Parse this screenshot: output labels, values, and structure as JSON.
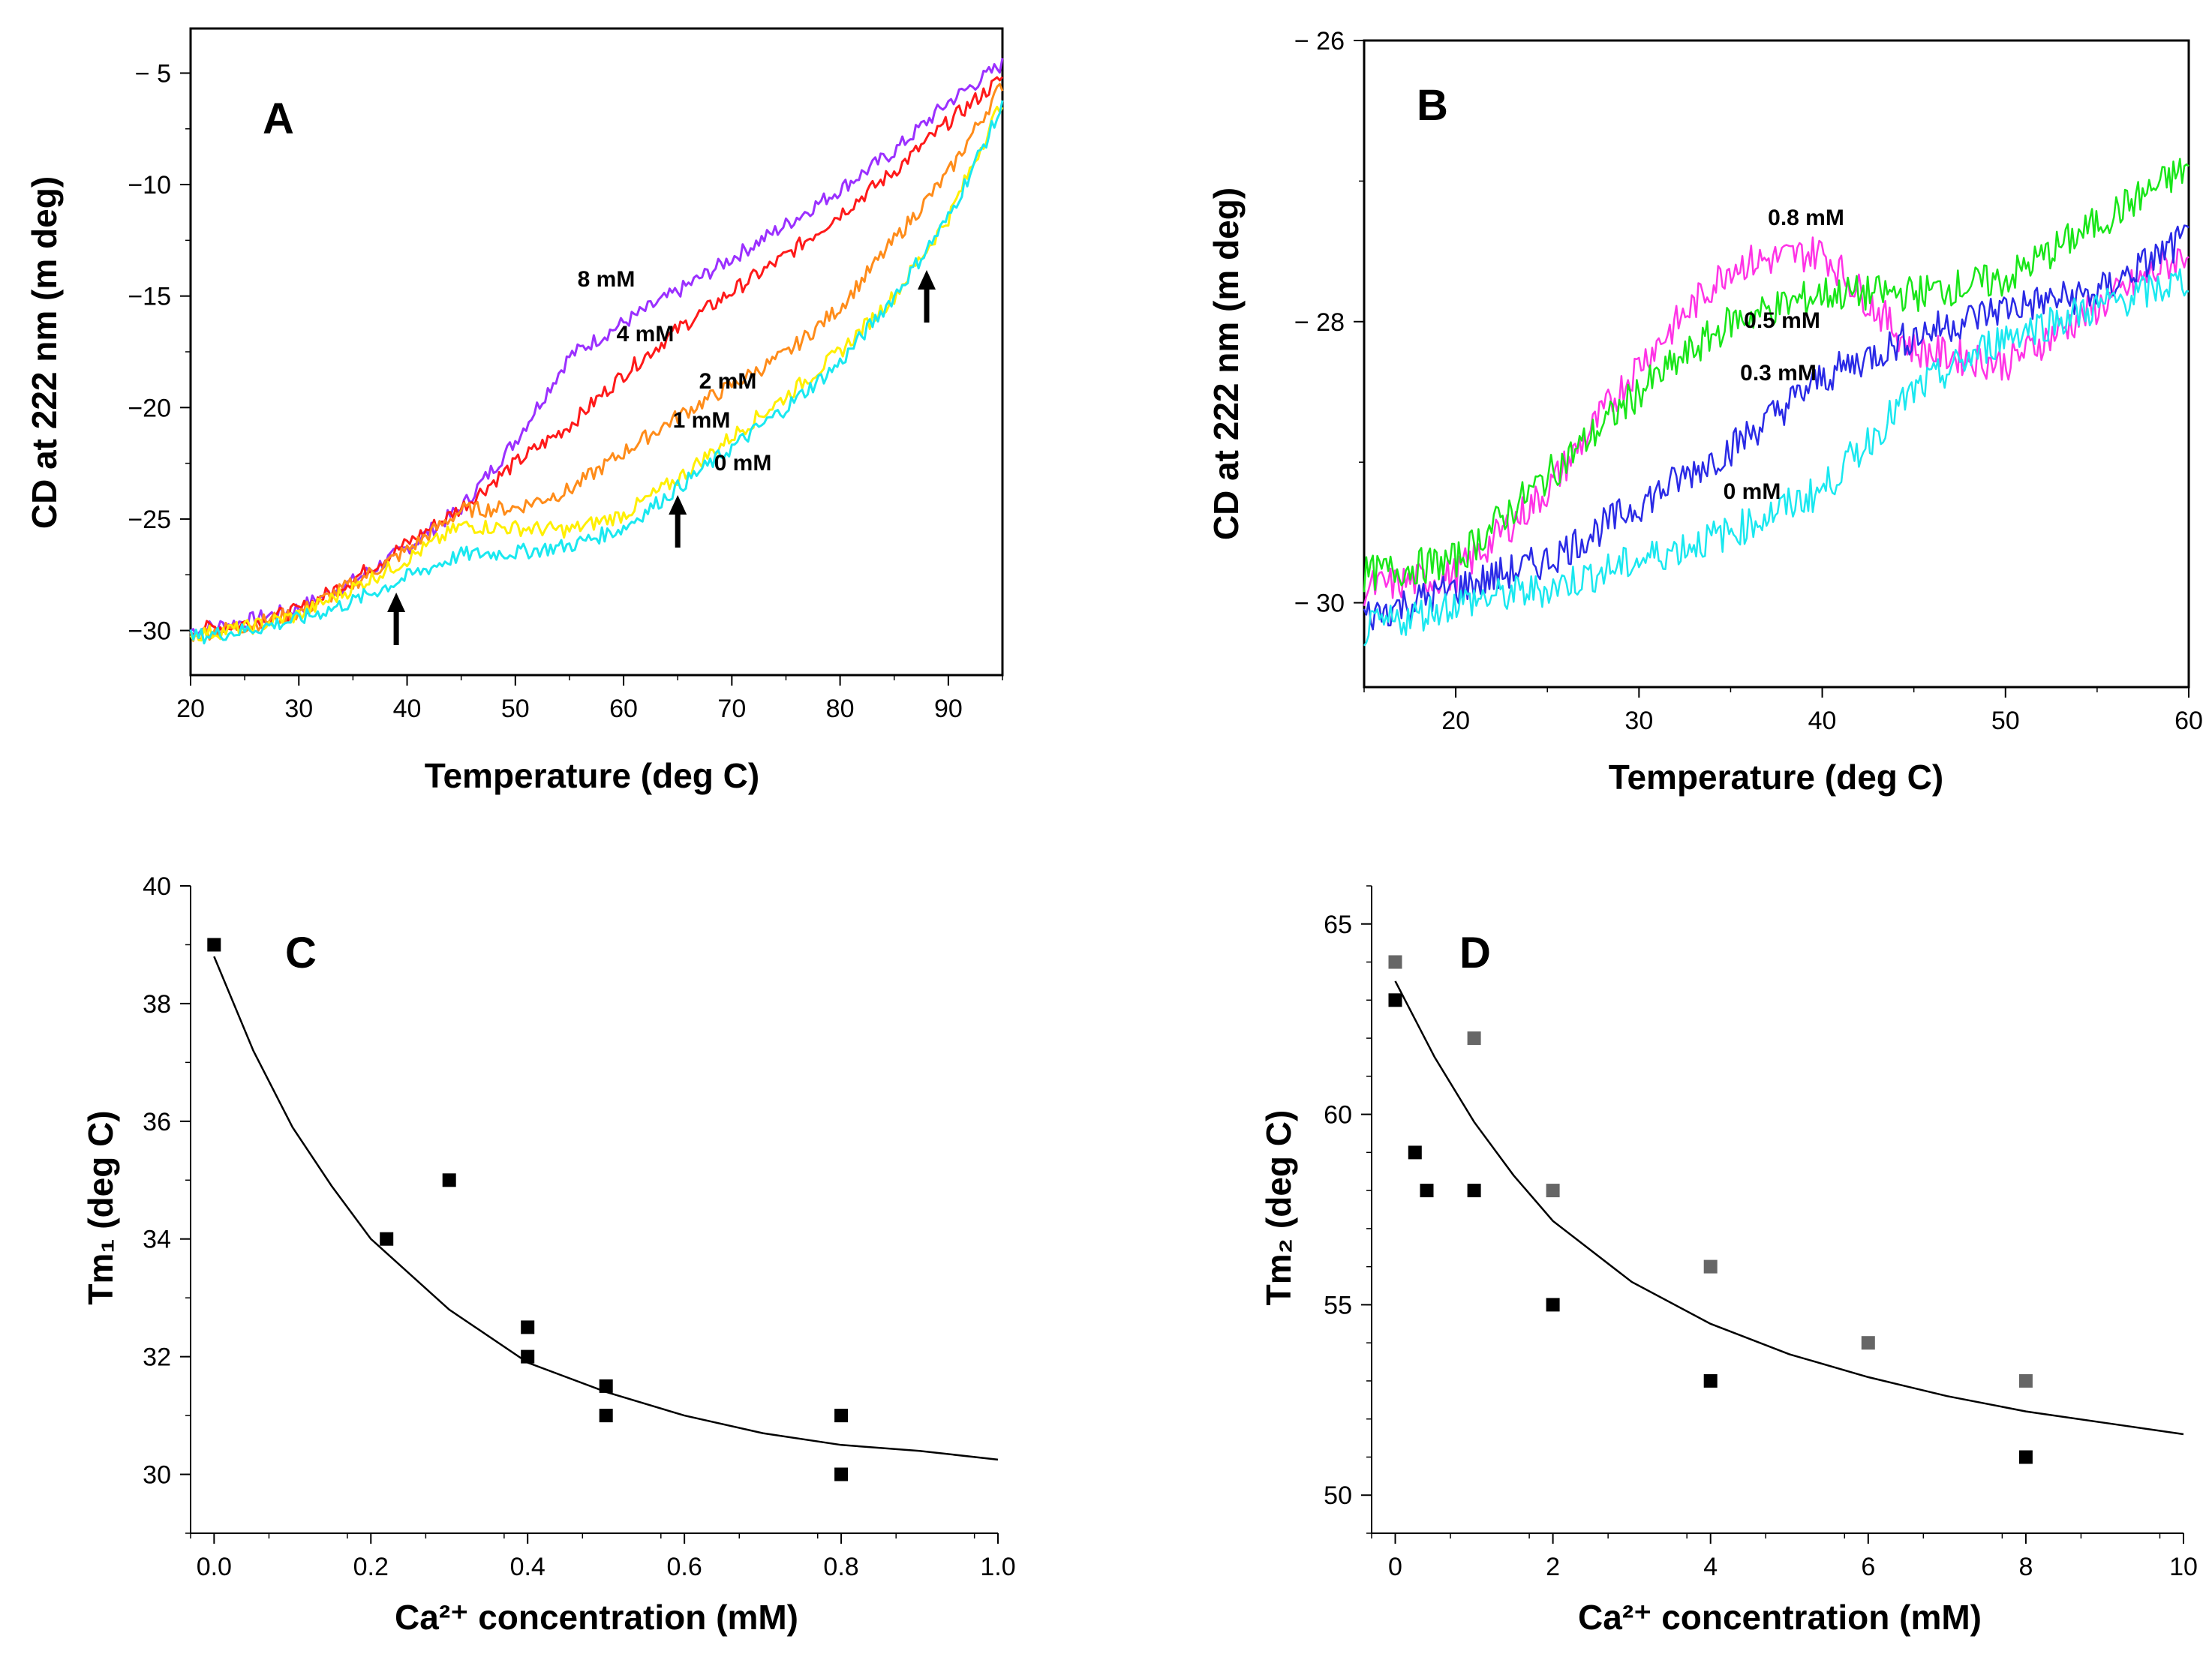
{
  "chart_data": [
    {
      "panel": "A",
      "type": "line",
      "xlabel": "Temperature (deg C)",
      "ylabel": "CD at 222 nm (m deg)",
      "xlim": [
        20,
        95
      ],
      "ylim": [
        -32,
        -3
      ],
      "xticks": [
        "20",
        "30",
        "40",
        "50",
        "60",
        "70",
        "80",
        "90"
      ],
      "yticks": [
        "− 5",
        "−10",
        "−15",
        "−20",
        "−25",
        "−30"
      ],
      "grid": false,
      "series": [
        {
          "name": "8 mM",
          "color": "#9b30ff",
          "x": [
            20,
            25,
            30,
            35,
            40,
            45,
            50,
            55,
            60,
            65,
            70,
            75,
            80,
            85,
            90,
            95
          ],
          "y": [
            -30,
            -29.6,
            -29,
            -27.8,
            -26.3,
            -24.5,
            -21.5,
            -17.7,
            -16.2,
            -14.8,
            -13.3,
            -11.8,
            -10.2,
            -8.5,
            -6.3,
            -4.6
          ]
        },
        {
          "name": "4 mM",
          "color": "#ff1a1a",
          "x": [
            20,
            25,
            30,
            35,
            40,
            45,
            50,
            55,
            60,
            65,
            70,
            75,
            80,
            85,
            90,
            95
          ],
          "y": [
            -30,
            -29.7,
            -29.1,
            -27.7,
            -26.1,
            -24.5,
            -22.5,
            -20.8,
            -18.5,
            -16.5,
            -14.8,
            -13.2,
            -11.3,
            -9.4,
            -7.2,
            -5.2
          ]
        },
        {
          "name": "2 mM",
          "color": "#ff8c1a",
          "x": [
            20,
            25,
            30,
            35,
            40,
            45,
            50,
            55,
            60,
            65,
            70,
            75,
            80,
            85,
            90,
            95
          ],
          "y": [
            -30.2,
            -29.8,
            -29.2,
            -27.9,
            -26.4,
            -24.6,
            -24.5,
            -23.7,
            -22,
            -20.4,
            -19,
            -17.6,
            -15.5,
            -12.5,
            -9.5,
            -5.5
          ]
        },
        {
          "name": "1 mM",
          "color": "#ffef00",
          "x": [
            20,
            25,
            30,
            35,
            40,
            45,
            50,
            55,
            60,
            65,
            70,
            75,
            80,
            85,
            90,
            95
          ],
          "y": [
            -30.2,
            -29.9,
            -29.3,
            -28.1,
            -26.8,
            -25.3,
            -25.4,
            -25.5,
            -24.8,
            -23.2,
            -21.3,
            -19.5,
            -17.5,
            -15,
            -11.5,
            -6.2
          ]
        },
        {
          "name": "0 mM",
          "color": "#1ae8f0",
          "x": [
            20,
            25,
            30,
            35,
            40,
            45,
            50,
            55,
            60,
            65,
            70,
            75,
            80,
            85,
            90,
            95
          ],
          "y": [
            -30.3,
            -30,
            -29.5,
            -28.7,
            -27.6,
            -26.6,
            -26.5,
            -26.2,
            -25.4,
            -23.6,
            -21.8,
            -20,
            -18,
            -15,
            -11.5,
            -6.5
          ]
        }
      ],
      "labels": [
        "8 mM",
        "4 mM",
        "2 mM",
        "1 mM",
        "0 mM"
      ],
      "annotations": [
        {
          "kind": "up-arrow",
          "x": 39
        },
        {
          "kind": "up-arrow",
          "x": 65
        },
        {
          "kind": "up-arrow",
          "x": 88
        }
      ]
    },
    {
      "panel": "B",
      "type": "line",
      "xlabel": "Temperature (deg C)",
      "ylabel": "CD at 222 nm (m deg)",
      "xlim": [
        15,
        60
      ],
      "ylim": [
        -30.6,
        -26
      ],
      "xticks": [
        "20",
        "30",
        "40",
        "50",
        "60"
      ],
      "yticks": [
        "− 26",
        "− 28",
        "− 30"
      ],
      "grid": false,
      "series": [
        {
          "name": "0.8 mM",
          "color": "#ff33e6",
          "x": [
            15,
            20,
            25,
            30,
            35,
            40,
            45,
            50,
            55,
            60
          ],
          "y": [
            -29.9,
            -29.8,
            -29.2,
            -28.3,
            -27.6,
            -27.5,
            -28.2,
            -28.3,
            -27.9,
            -27.5
          ]
        },
        {
          "name": "0.5 mM",
          "color": "#19e619",
          "x": [
            15,
            20,
            25,
            30,
            35,
            40,
            45,
            50,
            55,
            60
          ],
          "y": [
            -29.8,
            -29.7,
            -29.1,
            -28.5,
            -28,
            -27.8,
            -27.8,
            -27.7,
            -27.3,
            -26.9
          ]
        },
        {
          "name": "0.3 mM",
          "color": "#2a2ae6",
          "x": [
            15,
            20,
            25,
            30,
            35,
            40,
            45,
            50,
            55,
            60
          ],
          "y": [
            -30.1,
            -29.9,
            -29.7,
            -29.3,
            -28.9,
            -28.4,
            -28.1,
            -27.9,
            -27.8,
            -27.4
          ]
        },
        {
          "name": "0 mM",
          "color": "#1ae8f0",
          "x": [
            15,
            20,
            25,
            30,
            35,
            40,
            45,
            50,
            55,
            60
          ],
          "y": [
            -30.2,
            -30.0,
            -29.9,
            -29.7,
            -29.5,
            -29.2,
            -28.5,
            -28.1,
            -27.9,
            -27.7
          ]
        }
      ],
      "labels": [
        "0.8 mM",
        "0.5 mM",
        "0.3 mM",
        "0 mM"
      ]
    },
    {
      "panel": "C",
      "type": "scatter",
      "xlabel": "Ca²⁺ concentration (mM)",
      "ylabel": "Tm₁ (deg C)",
      "xlim": [
        -0.03,
        1.0
      ],
      "ylim": [
        29,
        40
      ],
      "xticks": [
        "0.0",
        "0.2",
        "0.4",
        "0.6",
        "0.8",
        "1.0"
      ],
      "yticks": [
        "30",
        "32",
        "34",
        "36",
        "38",
        "40"
      ],
      "grid": false,
      "points": {
        "x": [
          0,
          0.22,
          0.3,
          0.4,
          0.4,
          0.5,
          0.5,
          0.8,
          0.8
        ],
        "y": [
          39,
          34,
          35,
          32.5,
          32,
          31.5,
          31,
          31,
          30
        ]
      },
      "fit": {
        "x": [
          0,
          0.05,
          0.1,
          0.15,
          0.2,
          0.3,
          0.4,
          0.5,
          0.6,
          0.7,
          0.8,
          0.9,
          1.0
        ],
        "y": [
          38.8,
          37.2,
          35.9,
          34.9,
          34.0,
          32.8,
          31.9,
          31.4,
          31.0,
          30.7,
          30.5,
          30.4,
          30.25
        ]
      }
    },
    {
      "panel": "D",
      "type": "scatter",
      "xlabel": "Ca²⁺ concentration (mM)",
      "ylabel": "Tm₂ (deg C)",
      "xlim": [
        -0.3,
        10
      ],
      "ylim": [
        49,
        66
      ],
      "xticks": [
        "0",
        "2",
        "4",
        "6",
        "8",
        "10"
      ],
      "yticks": [
        "50",
        "55",
        "60",
        "65"
      ],
      "grid": false,
      "series": [
        {
          "color": "#000000",
          "x": [
            0,
            0.25,
            0.4,
            1,
            2,
            4,
            8
          ],
          "y": [
            63,
            59,
            58,
            58,
            55,
            53,
            51
          ]
        },
        {
          "color": "#666666",
          "x": [
            0,
            1,
            2,
            4,
            6,
            8
          ],
          "y": [
            64,
            62,
            58,
            56,
            54,
            53
          ]
        }
      ],
      "fit": {
        "x": [
          0,
          0.5,
          1,
          1.5,
          2,
          3,
          4,
          5,
          6,
          7,
          8,
          9,
          10
        ],
        "y": [
          63.5,
          61.5,
          59.8,
          58.4,
          57.2,
          55.6,
          54.5,
          53.7,
          53.1,
          52.6,
          52.2,
          51.9,
          51.6
        ]
      }
    }
  ]
}
